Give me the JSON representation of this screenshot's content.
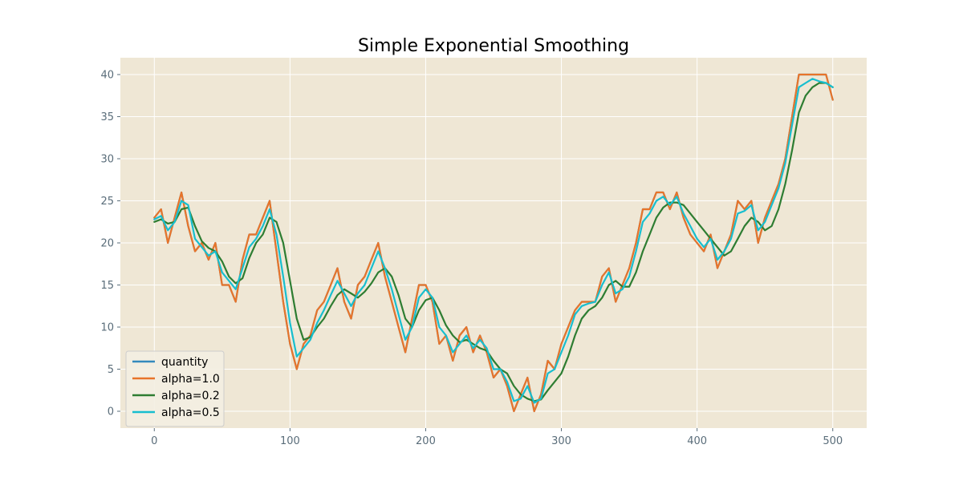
{
  "chart_data": {
    "type": "line",
    "title": "Simple Exponential Smoothing",
    "xlabel": "",
    "ylabel": "",
    "xlim": [
      -25,
      525
    ],
    "ylim": [
      -2,
      42
    ],
    "x_ticks": [
      0,
      100,
      200,
      300,
      400,
      500
    ],
    "y_ticks": [
      0,
      5,
      10,
      15,
      20,
      25,
      30,
      35,
      40
    ],
    "grid": true,
    "legend_position": "lower-left",
    "background_color": "#efe7d5",
    "x": [
      0,
      5,
      10,
      15,
      20,
      25,
      30,
      35,
      40,
      45,
      50,
      55,
      60,
      65,
      70,
      75,
      80,
      85,
      90,
      95,
      100,
      105,
      110,
      115,
      120,
      125,
      130,
      135,
      140,
      145,
      150,
      155,
      160,
      165,
      170,
      175,
      180,
      185,
      190,
      195,
      200,
      205,
      210,
      215,
      220,
      225,
      230,
      235,
      240,
      245,
      250,
      255,
      260,
      265,
      270,
      275,
      280,
      285,
      290,
      295,
      300,
      305,
      310,
      315,
      320,
      325,
      330,
      335,
      340,
      345,
      350,
      355,
      360,
      365,
      370,
      375,
      380,
      385,
      390,
      395,
      400,
      405,
      410,
      415,
      420,
      425,
      430,
      435,
      440,
      445,
      450,
      455,
      460,
      465,
      470,
      475,
      480,
      485,
      490,
      495,
      500
    ],
    "series": [
      {
        "name": "quantity",
        "color": "#348abd",
        "values": [
          23,
          24,
          20,
          23,
          26,
          22,
          19,
          20,
          18,
          20,
          15,
          15,
          13,
          18,
          21,
          21,
          23,
          25,
          19,
          13,
          8,
          5,
          8,
          9,
          12,
          13,
          15,
          17,
          13,
          11,
          15,
          16,
          18,
          20,
          16,
          13,
          10,
          7,
          11,
          15,
          15,
          13,
          8,
          9,
          6,
          9,
          10,
          7,
          9,
          7,
          4,
          5,
          3,
          0,
          2,
          4,
          0,
          2,
          6,
          5,
          8,
          10,
          12,
          13,
          13,
          13,
          16,
          17,
          13,
          15,
          17,
          20,
          24,
          24,
          26,
          26,
          24,
          26,
          23,
          21,
          20,
          19,
          21,
          17,
          19,
          21,
          25,
          24,
          25,
          20,
          23,
          25,
          27,
          30,
          35,
          40,
          40,
          40,
          40,
          40,
          37
        ]
      },
      {
        "name": "alpha=1.0",
        "color": "#e8742a",
        "values": [
          23,
          24,
          20,
          23,
          26,
          22,
          19,
          20,
          18,
          20,
          15,
          15,
          13,
          18,
          21,
          21,
          23,
          25,
          19,
          13,
          8,
          5,
          8,
          9,
          12,
          13,
          15,
          17,
          13,
          11,
          15,
          16,
          18,
          20,
          16,
          13,
          10,
          7,
          11,
          15,
          15,
          13,
          8,
          9,
          6,
          9,
          10,
          7,
          9,
          7,
          4,
          5,
          3,
          0,
          2,
          4,
          0,
          2,
          6,
          5,
          8,
          10,
          12,
          13,
          13,
          13,
          16,
          17,
          13,
          15,
          17,
          20,
          24,
          24,
          26,
          26,
          24,
          26,
          23,
          21,
          20,
          19,
          21,
          17,
          19,
          21,
          25,
          24,
          25,
          20,
          23,
          25,
          27,
          30,
          35,
          40,
          40,
          40,
          40,
          40,
          37
        ]
      },
      {
        "name": "alpha=0.2",
        "color": "#2e7d32",
        "values": [
          22.5,
          22.8,
          22.3,
          22.5,
          24.0,
          24.2,
          22.0,
          20.2,
          19.4,
          19.0,
          17.8,
          16.0,
          15.2,
          15.8,
          18.2,
          20.0,
          21.0,
          23.0,
          22.5,
          20.0,
          15.5,
          11.0,
          8.5,
          8.8,
          10.0,
          11.0,
          12.5,
          13.8,
          14.5,
          14.0,
          13.5,
          14.2,
          15.2,
          16.5,
          17.0,
          16.0,
          13.8,
          11.0,
          10.0,
          12.0,
          13.2,
          13.5,
          12.0,
          10.2,
          9.0,
          8.2,
          8.5,
          8.0,
          7.5,
          7.2,
          6.0,
          5.0,
          4.5,
          3.0,
          2.0,
          1.5,
          1.2,
          1.4,
          2.5,
          3.5,
          4.5,
          6.5,
          9.0,
          11.0,
          12.0,
          12.5,
          13.5,
          15.0,
          15.5,
          14.8,
          14.8,
          16.5,
          19.0,
          21.0,
          23.0,
          24.2,
          24.8,
          24.8,
          24.5,
          23.5,
          22.5,
          21.5,
          20.5,
          19.5,
          18.5,
          19.0,
          20.5,
          22.0,
          23.0,
          22.5,
          21.5,
          22.0,
          24.0,
          27.0,
          31.0,
          35.5,
          37.5,
          38.5,
          39.0,
          39.0,
          38.5
        ]
      },
      {
        "name": "alpha=0.5",
        "color": "#17becf",
        "values": [
          22.8,
          23.2,
          21.5,
          22.5,
          25.0,
          24.5,
          20.5,
          19.5,
          18.5,
          19.0,
          16.5,
          15.5,
          14.5,
          17.0,
          19.5,
          20.5,
          22.0,
          24.0,
          21.0,
          16.0,
          10.5,
          6.5,
          7.5,
          8.5,
          10.5,
          12.0,
          13.8,
          15.5,
          14.0,
          12.5,
          14.0,
          15.0,
          17.0,
          19.0,
          17.0,
          14.5,
          11.5,
          8.5,
          10.0,
          13.5,
          14.5,
          13.5,
          10.0,
          9.0,
          7.0,
          8.0,
          9.0,
          7.5,
          8.5,
          7.5,
          5.0,
          5.0,
          3.5,
          1.2,
          1.5,
          3.0,
          1.0,
          1.5,
          4.5,
          5.0,
          7.0,
          9.0,
          11.5,
          12.5,
          12.8,
          13.0,
          15.0,
          16.5,
          14.0,
          14.5,
          16.0,
          19.0,
          22.5,
          23.5,
          25.0,
          25.5,
          24.5,
          25.5,
          23.5,
          22.0,
          20.5,
          19.5,
          20.5,
          18.0,
          19.0,
          20.5,
          23.5,
          23.8,
          24.5,
          21.5,
          22.5,
          24.5,
          26.5,
          29.5,
          34.0,
          38.5,
          39.0,
          39.5,
          39.2,
          39.0,
          38.5
        ]
      }
    ]
  }
}
